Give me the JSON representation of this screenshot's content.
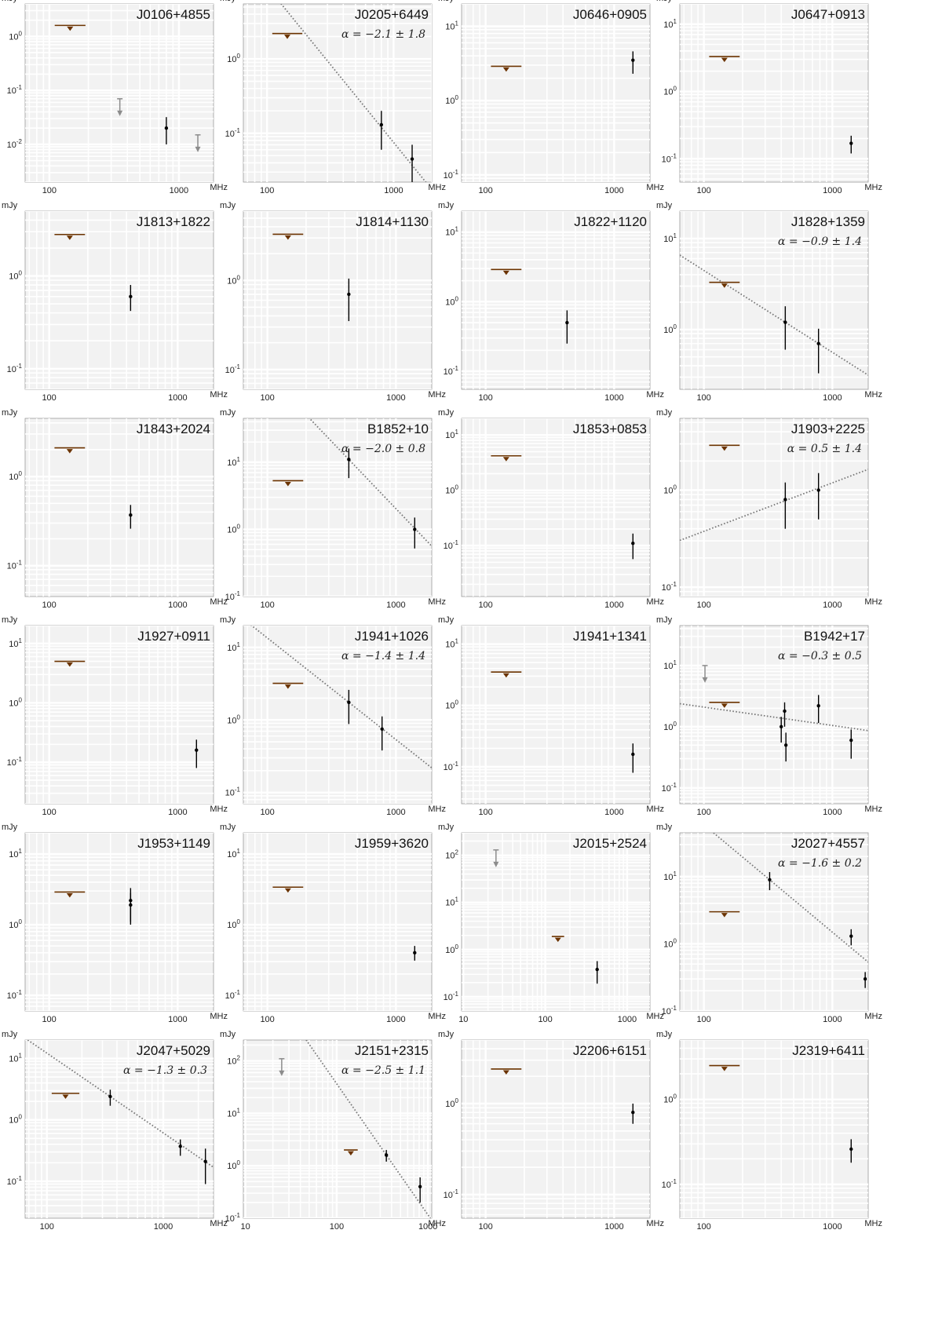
{
  "figure": {
    "flux_unit": "mJy",
    "freq_unit": "MHz",
    "colors": {
      "panel_bg": "#f2f2f2",
      "grid": "#ffffff",
      "upper_limit": "#6b3300",
      "upper_limit_gray": "#8c8c8c",
      "detection": "#000000",
      "fit_line": "#777777"
    }
  },
  "chart_data": [
    {
      "type": "scatter",
      "title": "J0106+4855",
      "xscale": "log",
      "yscale": "log",
      "xlim": [
        65,
        1850
      ],
      "ylim": [
        0.002,
        4
      ],
      "xticks": [
        100,
        1000
      ],
      "yticks": [
        0.01,
        0.1,
        1
      ],
      "limits_bar": [
        {
          "x1": 110,
          "x2": 190,
          "y": 1.6
        }
      ],
      "limits_arrow": [
        {
          "x": 350,
          "y": 0.07
        },
        {
          "x": 1400,
          "y": 0.015
        }
      ],
      "points": [
        {
          "x": 800,
          "y": 0.02,
          "lo": 0.01,
          "hi": 0.032
        }
      ]
    },
    {
      "type": "scatter",
      "title": "J0205+6449",
      "alpha": "α = −2.1 ± 1.8",
      "xscale": "log",
      "yscale": "log",
      "xlim": [
        65,
        2000
      ],
      "ylim": [
        0.022,
        5.5
      ],
      "xticks": [
        100,
        1000
      ],
      "yticks": [
        0.1,
        1
      ],
      "fit": {
        "alpha": -2.1,
        "x0": 800,
        "y0": 0.12
      },
      "limits_bar": [
        {
          "x1": 110,
          "x2": 190,
          "y": 2.2
        }
      ],
      "points": [
        {
          "x": 800,
          "y": 0.13,
          "lo": 0.06,
          "hi": 0.2
        },
        {
          "x": 1400,
          "y": 0.045,
          "lo": 0.022,
          "hi": 0.07
        }
      ]
    },
    {
      "type": "scatter",
      "title": "J0646+0905",
      "xscale": "log",
      "yscale": "log",
      "xlim": [
        65,
        1900
      ],
      "ylim": [
        0.08,
        20
      ],
      "xticks": [
        100,
        1000
      ],
      "yticks": [
        0.1,
        1,
        10
      ],
      "limits_bar": [
        {
          "x1": 110,
          "x2": 190,
          "y": 2.9
        }
      ],
      "points": [
        {
          "x": 1400,
          "y": 3.5,
          "lo": 2.3,
          "hi": 4.6
        }
      ]
    },
    {
      "type": "scatter",
      "title": "J0647+0913",
      "xscale": "log",
      "yscale": "log",
      "xlim": [
        65,
        1900
      ],
      "ylim": [
        0.045,
        20
      ],
      "xticks": [
        100,
        1000
      ],
      "yticks": [
        0.1,
        1,
        10
      ],
      "limits_bar": [
        {
          "x1": 110,
          "x2": 190,
          "y": 3.3
        }
      ],
      "points": [
        {
          "x": 1400,
          "y": 0.17,
          "lo": 0.12,
          "hi": 0.22
        }
      ]
    },
    {
      "type": "scatter",
      "title": "J1813+1822",
      "xscale": "log",
      "yscale": "log",
      "xlim": [
        65,
        1900
      ],
      "ylim": [
        0.06,
        5
      ],
      "xticks": [
        100,
        1000
      ],
      "yticks": [
        0.1,
        1
      ],
      "limits_bar": [
        {
          "x1": 110,
          "x2": 190,
          "y": 2.8
        }
      ],
      "points": [
        {
          "x": 430,
          "y": 0.6,
          "lo": 0.42,
          "hi": 0.8
        }
      ]
    },
    {
      "type": "scatter",
      "title": "J1814+1130",
      "xscale": "log",
      "yscale": "log",
      "xlim": [
        65,
        1900
      ],
      "ylim": [
        0.06,
        6
      ],
      "xticks": [
        100,
        1000
      ],
      "yticks": [
        0.1,
        1
      ],
      "limits_bar": [
        {
          "x1": 110,
          "x2": 190,
          "y": 3.3
        }
      ],
      "points": [
        {
          "x": 430,
          "y": 0.7,
          "lo": 0.35,
          "hi": 1.05
        }
      ]
    },
    {
      "type": "scatter",
      "title": "J1822+1120",
      "xscale": "log",
      "yscale": "log",
      "xlim": [
        65,
        1900
      ],
      "ylim": [
        0.055,
        20
      ],
      "xticks": [
        100,
        1000
      ],
      "yticks": [
        0.1,
        1,
        10
      ],
      "limits_bar": [
        {
          "x1": 110,
          "x2": 190,
          "y": 2.9
        }
      ],
      "points": [
        {
          "x": 430,
          "y": 0.5,
          "lo": 0.25,
          "hi": 0.75
        }
      ]
    },
    {
      "type": "scatter",
      "title": "J1828+1359",
      "alpha": "α = −0.9 ± 1.4",
      "xscale": "log",
      "yscale": "log",
      "xlim": [
        65,
        1900
      ],
      "ylim": [
        0.22,
        20
      ],
      "xticks": [
        100,
        1000
      ],
      "yticks": [
        1,
        10
      ],
      "fit": {
        "alpha": -0.9,
        "x0": 430,
        "y0": 1.2
      },
      "limits_bar": [
        {
          "x1": 110,
          "x2": 190,
          "y": 3.3
        }
      ],
      "points": [
        {
          "x": 430,
          "y": 1.2,
          "lo": 0.6,
          "hi": 1.8
        },
        {
          "x": 780,
          "y": 0.7,
          "lo": 0.33,
          "hi": 1.02
        }
      ]
    },
    {
      "type": "scatter",
      "title": "J1843+2024",
      "xscale": "log",
      "yscale": "log",
      "xlim": [
        65,
        1900
      ],
      "ylim": [
        0.045,
        4.5
      ],
      "xticks": [
        100,
        1000
      ],
      "yticks": [
        0.1,
        1
      ],
      "limits_bar": [
        {
          "x1": 110,
          "x2": 190,
          "y": 2.1
        }
      ],
      "points": [
        {
          "x": 430,
          "y": 0.37,
          "lo": 0.26,
          "hi": 0.48
        }
      ]
    },
    {
      "type": "scatter",
      "title": "B1852+10",
      "alpha": "α = −2.0 ± 0.8",
      "xscale": "log",
      "yscale": "log",
      "xlim": [
        65,
        1900
      ],
      "ylim": [
        0.1,
        45
      ],
      "xticks": [
        100,
        1000
      ],
      "yticks": [
        0.1,
        1,
        10
      ],
      "fit": {
        "alpha": -2.0,
        "x0": 430,
        "y0": 11
      },
      "limits_bar": [
        {
          "x1": 110,
          "x2": 190,
          "y": 5.3
        }
      ],
      "points": [
        {
          "x": 430,
          "y": 11,
          "lo": 5.8,
          "hi": 16
        },
        {
          "x": 1400,
          "y": 1.0,
          "lo": 0.52,
          "hi": 1.5
        }
      ]
    },
    {
      "type": "scatter",
      "title": "J1853+0853",
      "xscale": "log",
      "yscale": "log",
      "xlim": [
        65,
        1900
      ],
      "ylim": [
        0.012,
        20
      ],
      "xticks": [
        100,
        1000
      ],
      "yticks": [
        0.1,
        1,
        10
      ],
      "limits_bar": [
        {
          "x1": 110,
          "x2": 190,
          "y": 4.2
        }
      ],
      "points": [
        {
          "x": 1400,
          "y": 0.11,
          "lo": 0.057,
          "hi": 0.165
        }
      ]
    },
    {
      "type": "scatter",
      "title": "J1903+2225",
      "alpha": "α = 0.5 ± 1.4",
      "xscale": "log",
      "yscale": "log",
      "xlim": [
        65,
        1900
      ],
      "ylim": [
        0.08,
        5.5
      ],
      "xticks": [
        100,
        1000
      ],
      "yticks": [
        0.1,
        1
      ],
      "fit": {
        "alpha": 0.5,
        "x0": 430,
        "y0": 0.78
      },
      "limits_bar": [
        {
          "x1": 110,
          "x2": 190,
          "y": 2.9
        }
      ],
      "points": [
        {
          "x": 430,
          "y": 0.8,
          "lo": 0.4,
          "hi": 1.2
        },
        {
          "x": 780,
          "y": 1.0,
          "lo": 0.5,
          "hi": 1.5
        }
      ]
    },
    {
      "type": "scatter",
      "title": "J1927+0911",
      "xscale": "log",
      "yscale": "log",
      "xlim": [
        65,
        1900
      ],
      "ylim": [
        0.02,
        20
      ],
      "xticks": [
        100,
        1000
      ],
      "yticks": [
        0.1,
        1,
        10
      ],
      "limits_bar": [
        {
          "x1": 110,
          "x2": 190,
          "y": 5.0
        }
      ],
      "points": [
        {
          "x": 1400,
          "y": 0.16,
          "lo": 0.08,
          "hi": 0.24
        }
      ]
    },
    {
      "type": "scatter",
      "title": "J1941+1026",
      "alpha": "α = −1.4 ± 1.4",
      "xscale": "log",
      "yscale": "log",
      "xlim": [
        65,
        1900
      ],
      "ylim": [
        0.07,
        20
      ],
      "xticks": [
        100,
        1000
      ],
      "yticks": [
        0.1,
        1,
        10
      ],
      "fit": {
        "alpha": -1.4,
        "x0": 430,
        "y0": 1.75
      },
      "limits_bar": [
        {
          "x1": 110,
          "x2": 190,
          "y": 3.2
        }
      ],
      "points": [
        {
          "x": 430,
          "y": 1.75,
          "lo": 0.88,
          "hi": 2.6
        },
        {
          "x": 780,
          "y": 0.75,
          "lo": 0.38,
          "hi": 1.12
        }
      ]
    },
    {
      "type": "scatter",
      "title": "J1941+1341",
      "xscale": "log",
      "yscale": "log",
      "xlim": [
        65,
        1900
      ],
      "ylim": [
        0.025,
        20
      ],
      "xticks": [
        100,
        1000
      ],
      "yticks": [
        0.1,
        1,
        10
      ],
      "limits_bar": [
        {
          "x1": 110,
          "x2": 190,
          "y": 3.5
        }
      ],
      "points": [
        {
          "x": 1400,
          "y": 0.16,
          "lo": 0.08,
          "hi": 0.24
        }
      ]
    },
    {
      "type": "scatter",
      "title": "B1942+17",
      "alpha": "α = −0.3 ± 0.5",
      "xscale": "log",
      "yscale": "log",
      "xlim": [
        65,
        1900
      ],
      "ylim": [
        0.055,
        45
      ],
      "xticks": [
        100,
        1000
      ],
      "yticks": [
        0.1,
        1,
        10
      ],
      "fit": {
        "alpha": -0.3,
        "x0": 430,
        "y0": 1.35
      },
      "limits_bar": [
        {
          "x1": 110,
          "x2": 190,
          "y": 2.5
        }
      ],
      "limits_arrow": [
        {
          "x": 102,
          "y": 10
        }
      ],
      "points": [
        {
          "x": 400,
          "y": 1.0,
          "lo": 0.55,
          "hi": 1.45
        },
        {
          "x": 425,
          "y": 1.8,
          "lo": 1.0,
          "hi": 2.5
        },
        {
          "x": 435,
          "y": 0.5,
          "lo": 0.27,
          "hi": 0.8
        },
        {
          "x": 780,
          "y": 2.2,
          "lo": 1.15,
          "hi": 3.3
        },
        {
          "x": 1400,
          "y": 0.6,
          "lo": 0.3,
          "hi": 0.9
        }
      ]
    },
    {
      "type": "scatter",
      "title": "J1953+1149",
      "xscale": "log",
      "yscale": "log",
      "xlim": [
        65,
        1900
      ],
      "ylim": [
        0.06,
        20
      ],
      "xticks": [
        100,
        1000
      ],
      "yticks": [
        0.1,
        1,
        10
      ],
      "limits_bar": [
        {
          "x1": 110,
          "x2": 190,
          "y": 2.9
        }
      ],
      "points": [
        {
          "x": 430,
          "y": 2.2,
          "lo": 1.1,
          "hi": 3.3
        },
        {
          "x": 430,
          "y": 1.9,
          "lo": 1.0,
          "hi": 2.8
        }
      ]
    },
    {
      "type": "scatter",
      "title": "J1959+3620",
      "xscale": "log",
      "yscale": "log",
      "xlim": [
        65,
        1900
      ],
      "ylim": [
        0.06,
        20
      ],
      "xticks": [
        100,
        1000
      ],
      "yticks": [
        0.1,
        1,
        10
      ],
      "limits_bar": [
        {
          "x1": 110,
          "x2": 190,
          "y": 3.4
        }
      ],
      "points": [
        {
          "x": 1400,
          "y": 0.4,
          "lo": 0.31,
          "hi": 0.5
        }
      ]
    },
    {
      "type": "scatter",
      "title": "J2015+2524",
      "xscale": "log",
      "yscale": "log",
      "xlim": [
        9.5,
        1900
      ],
      "ylim": [
        0.05,
        300
      ],
      "xticks": [
        10,
        100,
        1000
      ],
      "yticks": [
        0.1,
        1,
        10,
        100
      ],
      "limits_bar": [
        {
          "x1": 120,
          "x2": 170,
          "y": 1.9
        }
      ],
      "limits_arrow": [
        {
          "x": 25,
          "y": 130
        }
      ],
      "points": [
        {
          "x": 430,
          "y": 0.38,
          "lo": 0.19,
          "hi": 0.57
        }
      ]
    },
    {
      "type": "scatter",
      "title": "J2027+4557",
      "alpha": "α = −1.6 ± 0.2",
      "xscale": "log",
      "yscale": "log",
      "xlim": [
        65,
        1900
      ],
      "ylim": [
        0.1,
        45
      ],
      "xticks": [
        100,
        1000
      ],
      "yticks": [
        0.1,
        1,
        10
      ],
      "fit": {
        "alpha": -1.6,
        "x0": 325,
        "y0": 9
      },
      "limits_bar": [
        {
          "x1": 110,
          "x2": 190,
          "y": 3.0
        }
      ],
      "points": [
        {
          "x": 325,
          "y": 9,
          "lo": 6.3,
          "hi": 11.7
        },
        {
          "x": 1400,
          "y": 1.3,
          "lo": 0.95,
          "hi": 1.65
        },
        {
          "x": 1800,
          "y": 0.3,
          "lo": 0.22,
          "hi": 0.38
        }
      ]
    },
    {
      "type": "scatter",
      "title": "J2047+5029",
      "alpha": "α = −1.3 ± 0.3",
      "xscale": "log",
      "yscale": "log",
      "xlim": [
        65,
        2700
      ],
      "ylim": [
        0.025,
        20
      ],
      "xticks": [
        100,
        1000
      ],
      "yticks": [
        0.1,
        1,
        10
      ],
      "fit": {
        "alpha": -1.3,
        "x0": 350,
        "y0": 2.4
      },
      "limits_bar": [
        {
          "x1": 110,
          "x2": 190,
          "y": 2.7
        }
      ],
      "points": [
        {
          "x": 350,
          "y": 2.4,
          "lo": 1.7,
          "hi": 3.1
        },
        {
          "x": 1400,
          "y": 0.37,
          "lo": 0.26,
          "hi": 0.48
        },
        {
          "x": 2300,
          "y": 0.21,
          "lo": 0.09,
          "hi": 0.34
        }
      ]
    },
    {
      "type": "scatter",
      "title": "J2151+2315",
      "alpha": "α = −2.5 ± 1.1",
      "xscale": "log",
      "yscale": "log",
      "xlim": [
        9.5,
        1100
      ],
      "ylim": [
        0.1,
        250
      ],
      "xticks": [
        10,
        100,
        1000
      ],
      "yticks": [
        0.1,
        1,
        10,
        100
      ],
      "fit": {
        "alpha": -2.5,
        "x0": 350,
        "y0": 1.6
      },
      "limits_bar": [
        {
          "x1": 120,
          "x2": 170,
          "y": 2.0
        }
      ],
      "limits_arrow": [
        {
          "x": 25,
          "y": 110
        }
      ],
      "points": [
        {
          "x": 350,
          "y": 1.6,
          "lo": 1.2,
          "hi": 2.0
        },
        {
          "x": 820,
          "y": 0.4,
          "lo": 0.2,
          "hi": 0.6
        }
      ]
    },
    {
      "type": "scatter",
      "title": "J2206+6151",
      "xscale": "log",
      "yscale": "log",
      "xlim": [
        65,
        1900
      ],
      "ylim": [
        0.055,
        5
      ],
      "xticks": [
        100,
        1000
      ],
      "yticks": [
        0.1,
        1
      ],
      "limits_bar": [
        {
          "x1": 110,
          "x2": 190,
          "y": 2.4
        }
      ],
      "points": [
        {
          "x": 1400,
          "y": 0.8,
          "lo": 0.6,
          "hi": 1.0
        }
      ]
    },
    {
      "type": "scatter",
      "title": "J2319+6411",
      "xscale": "log",
      "yscale": "log",
      "xlim": [
        65,
        1900
      ],
      "ylim": [
        0.04,
        5
      ],
      "xticks": [
        100,
        1000
      ],
      "yticks": [
        0.1,
        1
      ],
      "limits_bar": [
        {
          "x1": 110,
          "x2": 190,
          "y": 2.5
        }
      ],
      "points": [
        {
          "x": 1400,
          "y": 0.26,
          "lo": 0.18,
          "hi": 0.34
        }
      ]
    }
  ]
}
